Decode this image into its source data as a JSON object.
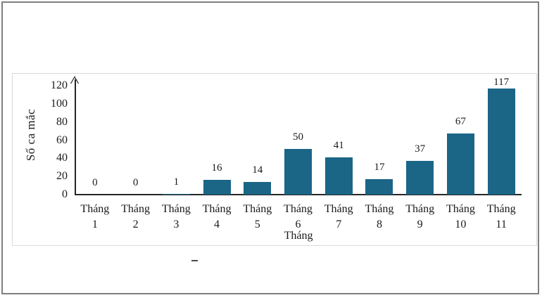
{
  "chart_data": {
    "type": "bar",
    "title": "",
    "categories": [
      "Tháng 1",
      "Tháng 2",
      "Tháng 3",
      "Tháng 4",
      "Tháng 5",
      "Tháng 6",
      "Tháng 7",
      "Tháng 8",
      "Tháng 9",
      "Tháng 10",
      "Tháng 11"
    ],
    "values": [
      0,
      0,
      1,
      16,
      14,
      50,
      41,
      17,
      37,
      67,
      117
    ],
    "xlabel": "Tháng",
    "ylabel": "Số ca mắc",
    "ylim": [
      0,
      120
    ],
    "yticks": [
      0,
      20,
      40,
      60,
      80,
      100,
      120
    ],
    "bar_color": "#1B6586",
    "grid": false,
    "legend": false,
    "data_labels_position": "outside-end"
  },
  "colors": {
    "background": "#ffffff",
    "outer_border": "#7f7f7f",
    "panel_border": "#d9d9d9",
    "axis": "#262626",
    "text": "#1a1a1a"
  },
  "annotations": {
    "stray_mark": "-"
  }
}
